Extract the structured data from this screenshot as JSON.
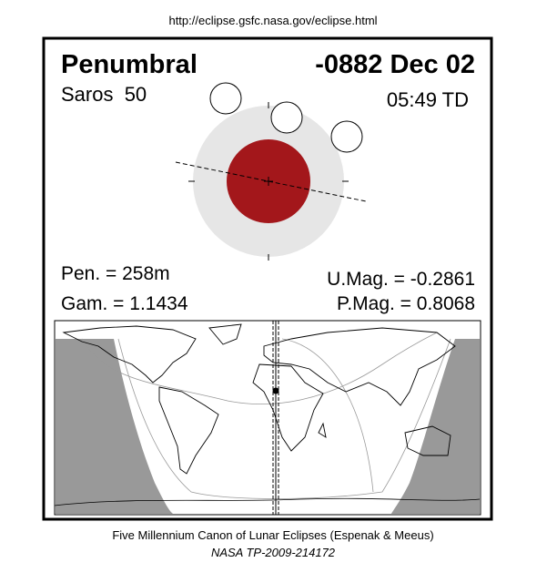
{
  "header": {
    "url": "http://eclipse.gsfc.nasa.gov/eclipse.html"
  },
  "title": {
    "type": "Penumbral",
    "date": "-0882 Dec 02"
  },
  "info": {
    "saros": "Saros  50",
    "time": "05:49 TD"
  },
  "stats": {
    "pen": "Pen. = 258m",
    "gam": "Gam. = 1.1434",
    "umag": "U.Mag. = -0.2861",
    "pmag": "P.Mag. = 0.8068"
  },
  "footer": {
    "canon": "Five Millennium Canon of Lunar Eclipses (Espenak & Meeus)",
    "publication": "NASA TP-2009-214172"
  }
}
